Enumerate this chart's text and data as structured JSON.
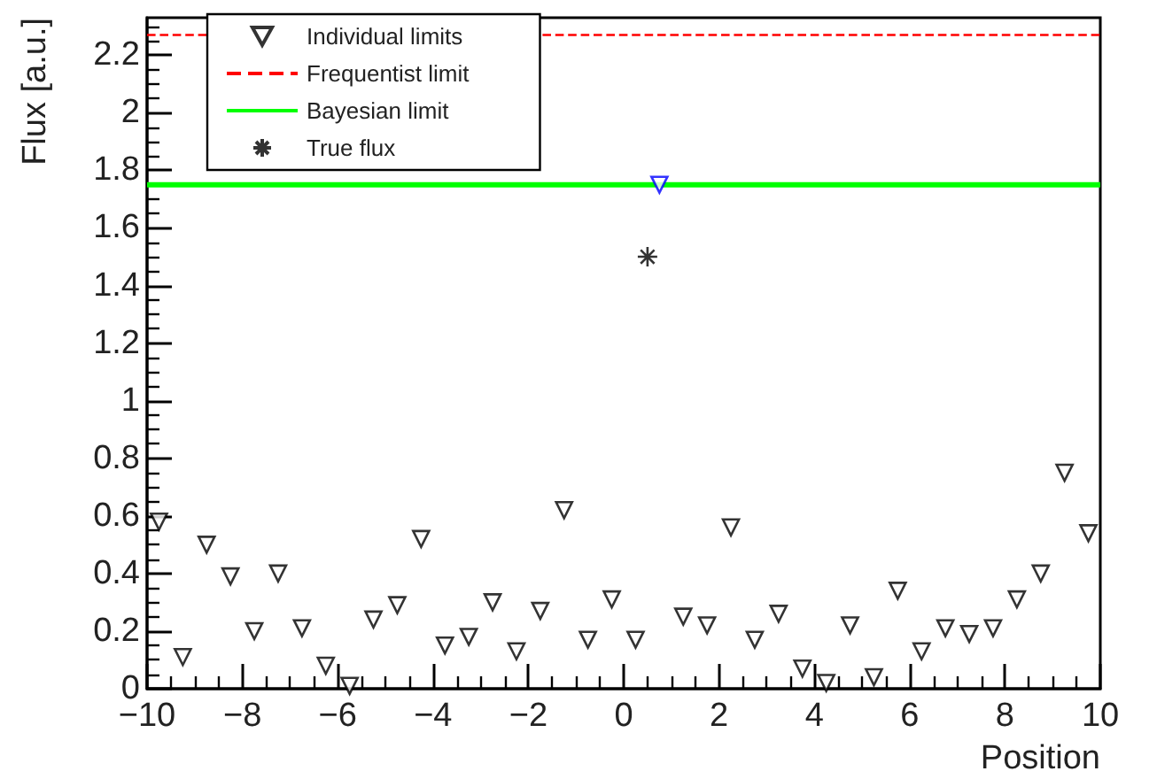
{
  "chart_data": {
    "type": "scatter",
    "xlabel": "Position",
    "ylabel": "Flux [a.u.]",
    "xlim": [
      -10,
      10
    ],
    "xticks": [
      -10,
      -8,
      -6,
      -4,
      -2,
      0,
      2,
      4,
      6,
      8,
      10
    ],
    "ylim": [
      0,
      2.33
    ],
    "yticks": [
      0,
      0.2,
      0.4,
      0.6,
      0.8,
      1,
      1.2,
      1.4,
      1.6,
      1.8,
      2,
      2.2
    ],
    "grid": false,
    "legend": "top left",
    "series": [
      {
        "name": "Individual limits",
        "marker": "triangle",
        "color": "#000000",
        "colors": [
          "#000000",
          "#000000",
          "#000000",
          "#000000",
          "#000000",
          "#000000",
          "#000000",
          "#000000",
          "#000000",
          "#000000",
          "#000000",
          "#000000",
          "#000000",
          "#000000",
          "#000000",
          "#000000",
          "#000000",
          "#000000",
          "#000000",
          "#000000",
          "#000000",
          "#0000ff",
          "#000000",
          "#000000",
          "#000000",
          "#000000",
          "#000000",
          "#000000",
          "#000000",
          "#000000",
          "#000000",
          "#000000",
          "#000000",
          "#000000",
          "#000000",
          "#000000",
          "#000000",
          "#000000",
          "#000000",
          "#000000"
        ],
        "x": [
          -9.75,
          -9.25,
          -8.75,
          -8.25,
          -7.75,
          -7.25,
          -6.75,
          -6.25,
          -5.75,
          -5.25,
          -4.75,
          -4.25,
          -3.75,
          -3.25,
          -2.75,
          -2.25,
          -1.75,
          -1.25,
          -0.75,
          -0.25,
          0.25,
          0.75,
          1.25,
          1.75,
          2.25,
          2.75,
          3.25,
          3.75,
          4.25,
          4.75,
          5.25,
          5.75,
          6.25,
          6.75,
          7.25,
          7.75,
          8.25,
          8.75,
          9.25,
          9.75
        ],
        "values": [
          0.58,
          0.11,
          0.5,
          0.39,
          0.2,
          0.4,
          0.21,
          0.08,
          0.01,
          0.24,
          0.29,
          0.52,
          0.15,
          0.18,
          0.3,
          0.13,
          0.27,
          0.62,
          0.17,
          0.31,
          0.17,
          1.75,
          0.25,
          0.22,
          0.56,
          0.17,
          0.26,
          0.07,
          0.02,
          0.22,
          0.04,
          0.34,
          0.13,
          0.21,
          0.19,
          0.21,
          0.31,
          0.4,
          0.75,
          0.54
        ]
      },
      {
        "name": "True flux",
        "marker": "cross",
        "color": "#000000",
        "x": [
          0.5
        ],
        "values": [
          1.5
        ]
      }
    ],
    "ref_lines": [
      {
        "axis": "y",
        "value": 2.27,
        "label": "Frequentist limit",
        "color": "#ff0000",
        "line_style": "dashed"
      },
      {
        "axis": "y",
        "value": 1.75,
        "label": "Bayesian limit",
        "color": "#00ff00",
        "line_style": "solid"
      }
    ]
  }
}
